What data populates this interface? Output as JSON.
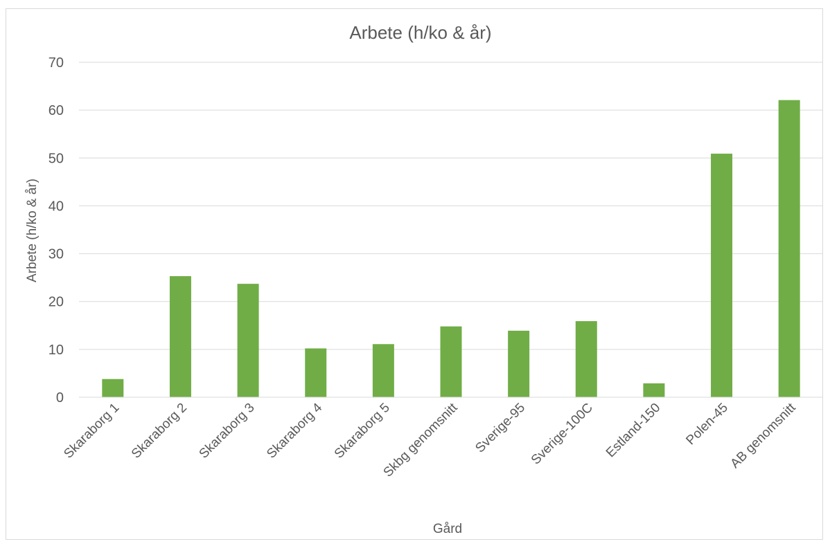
{
  "chart_data": {
    "type": "bar",
    "title": "Arbete (h/ko & år)",
    "xlabel": "Gård",
    "ylabel": "Arbete (h/ko & år)",
    "ylim": [
      0,
      70
    ],
    "yticks": [
      0,
      10,
      20,
      30,
      40,
      50,
      60,
      70
    ],
    "grid": true,
    "legend": "none",
    "bar_color": "#70ad47",
    "categories": [
      "Skaraborg 1",
      "Skaraborg 2",
      "Skaraborg 3",
      "Skaraborg 4",
      "Skaraborg 5",
      "Skbg genomsnitt",
      "Sverige-95",
      "Sverige-100C",
      "Estland-150",
      "Polen-45",
      "AB genomsnitt"
    ],
    "values": [
      3.8,
      25.3,
      23.7,
      10.2,
      11.1,
      14.8,
      13.9,
      15.9,
      2.9,
      50.9,
      62.1
    ]
  }
}
